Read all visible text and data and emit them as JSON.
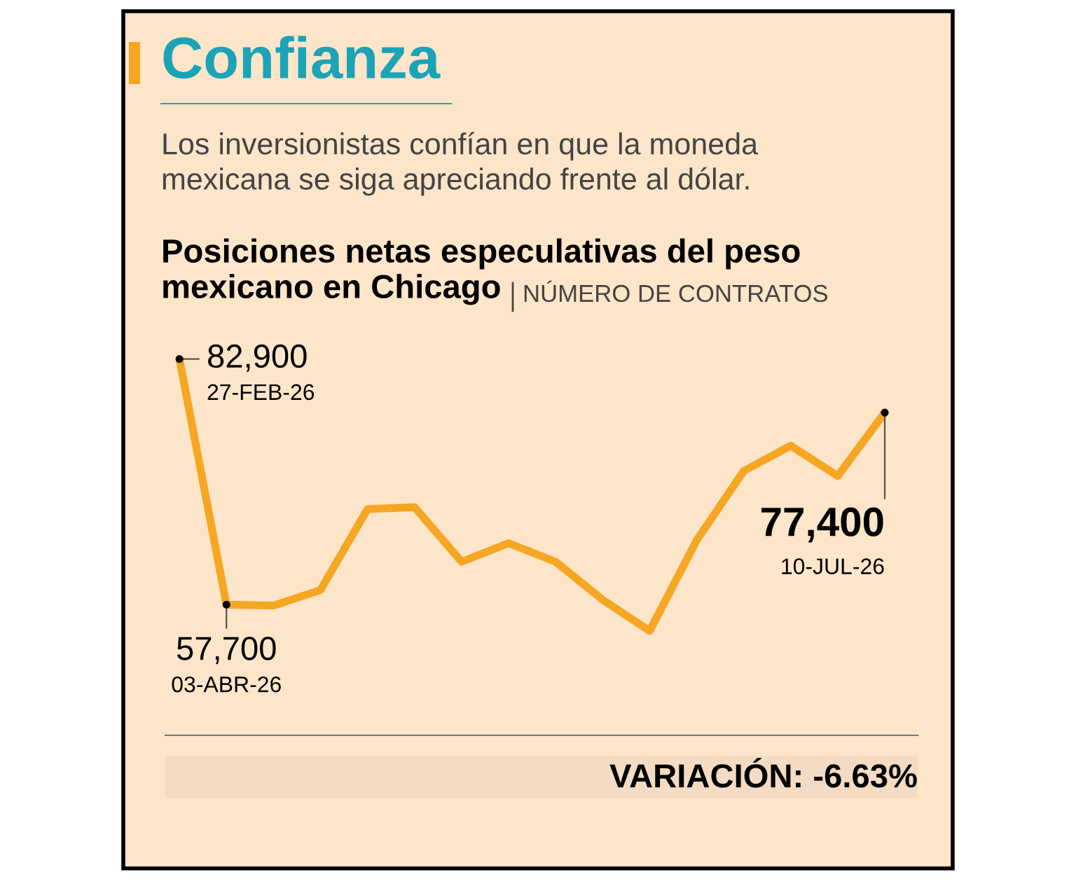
{
  "chart_data": {
    "type": "line",
    "title": "Confianza",
    "subtitle": "Los inversionistas confían en que la moneda\nmexicana se siga apreciando frente al dólar.",
    "ylabel": "NÚMERO DE CONTRATOS",
    "annotations": [
      "Posiciones netas especulativas del peso\nmexicano en Chicago",
      "VARIACIÓN: -6.63%",
      "27-FEB-26",
      "03-ABR-26",
      "10-JUL-26"
    ],
    "categories": [
      null,
      null,
      null,
      null,
      null,
      null,
      null,
      null,
      null,
      null,
      null,
      null,
      null,
      null,
      null,
      null
    ],
    "series": [
      {
        "color": "#f5a623",
        "values": [
          82900,
          57700,
          57600,
          59200,
          67500,
          67700,
          62100,
          64000,
          62100,
          58200,
          55000,
          64300,
          71400,
          74000,
          70900,
          77400
        ],
        "value_labels": [
          "82,900",
          "57,700",
          null,
          null,
          null,
          null,
          null,
          null,
          null,
          null,
          null,
          null,
          null,
          null,
          null,
          "77,400"
        ]
      }
    ]
  }
}
